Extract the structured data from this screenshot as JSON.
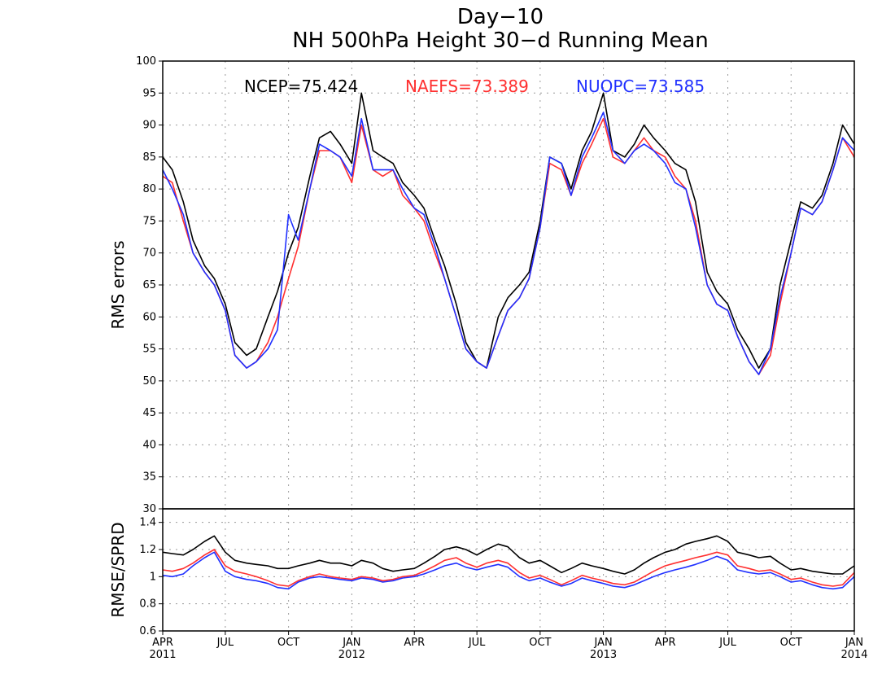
{
  "chart_data": [
    {
      "type": "line",
      "title": "Day−10",
      "subtitle": "NH 500hPa Height 30−d Running Mean",
      "ylabel": "RMS errors",
      "xlabel": "",
      "ylim": [
        30,
        100
      ],
      "yticks": [
        30,
        35,
        40,
        45,
        50,
        55,
        60,
        65,
        70,
        75,
        80,
        85,
        90,
        95,
        100
      ],
      "xlim": [
        "2011-04-01",
        "2014-01-01"
      ],
      "xtick_labels": [
        {
          "date": "2011-04-01",
          "label": "APR",
          "year": "2011"
        },
        {
          "date": "2011-07-01",
          "label": "JUL",
          "year": ""
        },
        {
          "date": "2011-10-01",
          "label": "OCT",
          "year": ""
        },
        {
          "date": "2012-01-01",
          "label": "JAN",
          "year": "2012"
        },
        {
          "date": "2012-04-01",
          "label": "APR",
          "year": ""
        },
        {
          "date": "2012-07-01",
          "label": "JUL",
          "year": ""
        },
        {
          "date": "2012-10-01",
          "label": "OCT",
          "year": ""
        },
        {
          "date": "2013-01-01",
          "label": "JAN",
          "year": "2013"
        },
        {
          "date": "2013-04-01",
          "label": "APR",
          "year": ""
        },
        {
          "date": "2013-07-01",
          "label": "JUL",
          "year": ""
        },
        {
          "date": "2013-10-01",
          "label": "OCT",
          "year": ""
        },
        {
          "date": "2014-01-01",
          "label": "JAN",
          "year": "2014"
        }
      ],
      "grid": true,
      "legend_position": "top",
      "x": [
        "2011-04-01",
        "2011-04-15",
        "2011-05-01",
        "2011-05-15",
        "2011-06-01",
        "2011-06-15",
        "2011-07-01",
        "2011-07-15",
        "2011-08-01",
        "2011-08-15",
        "2011-09-01",
        "2011-09-15",
        "2011-10-01",
        "2011-10-15",
        "2011-11-01",
        "2011-11-15",
        "2011-12-01",
        "2011-12-15",
        "2012-01-01",
        "2012-01-15",
        "2012-02-01",
        "2012-02-15",
        "2012-03-01",
        "2012-03-15",
        "2012-04-01",
        "2012-04-15",
        "2012-05-01",
        "2012-05-15",
        "2012-06-01",
        "2012-06-15",
        "2012-07-01",
        "2012-07-15",
        "2012-08-01",
        "2012-08-15",
        "2012-09-01",
        "2012-09-15",
        "2012-10-01",
        "2012-10-15",
        "2012-11-01",
        "2012-11-15",
        "2012-12-01",
        "2012-12-15",
        "2013-01-01",
        "2013-01-15",
        "2013-02-01",
        "2013-02-15",
        "2013-03-01",
        "2013-03-15",
        "2013-04-01",
        "2013-04-15",
        "2013-05-01",
        "2013-05-15",
        "2013-06-01",
        "2013-06-15",
        "2013-07-01",
        "2013-07-15",
        "2013-08-01",
        "2013-08-15",
        "2013-09-01",
        "2013-09-15",
        "2013-10-01",
        "2013-10-15",
        "2013-11-01",
        "2013-11-15",
        "2013-12-01",
        "2013-12-15",
        "2014-01-01"
      ],
      "series": [
        {
          "name": "NCEP",
          "score": "75.424",
          "color": "#000000",
          "values": [
            85,
            83,
            78,
            72,
            68,
            66,
            62,
            56,
            54,
            55,
            60,
            64,
            70,
            74,
            82,
            88,
            89,
            87,
            84,
            95,
            86,
            85,
            84,
            81,
            79,
            77,
            72,
            68,
            62,
            56,
            53,
            52,
            60,
            63,
            65,
            67,
            75,
            85,
            84,
            80,
            86,
            89,
            95,
            86,
            85,
            87,
            90,
            88,
            86,
            84,
            83,
            78,
            67,
            64,
            62,
            58,
            55,
            52,
            55,
            65,
            72,
            78,
            77,
            79,
            84,
            90,
            87
          ]
        },
        {
          "name": "NAEFS",
          "score": "73.389",
          "color": "#ff3030",
          "values": [
            82,
            81,
            75,
            70,
            67,
            65,
            61,
            54,
            52,
            53,
            56,
            60,
            66,
            71,
            80,
            86,
            86,
            85,
            81,
            90,
            83,
            82,
            83,
            79,
            77,
            75,
            70,
            66,
            60,
            55,
            53,
            52,
            57,
            61,
            63,
            66,
            74,
            84,
            83,
            79,
            84,
            87,
            91,
            85,
            84,
            86,
            88,
            86,
            85,
            82,
            80,
            75,
            65,
            62,
            61,
            57,
            53,
            51,
            54,
            62,
            70,
            77,
            76,
            78,
            83,
            88,
            85
          ]
        },
        {
          "name": "NUOPC",
          "score": "73.585",
          "color": "#2030ff",
          "values": [
            83,
            80,
            76,
            70,
            67,
            65,
            61,
            54,
            52,
            53,
            55,
            58,
            76,
            72,
            80,
            87,
            86,
            85,
            82,
            91,
            83,
            83,
            83,
            80,
            77,
            76,
            71,
            66,
            60,
            55,
            53,
            52,
            57,
            61,
            63,
            66,
            74,
            85,
            84,
            79,
            85,
            88,
            92,
            86,
            84,
            86,
            87,
            86,
            84,
            81,
            80,
            74,
            65,
            62,
            61,
            57,
            53,
            51,
            55,
            63,
            70,
            77,
            76,
            78,
            83,
            88,
            86
          ]
        }
      ]
    },
    {
      "type": "line",
      "title": "",
      "ylabel": "RMSE/SPRD",
      "ylim": [
        0.6,
        1.5
      ],
      "yticks": [
        0.6,
        0.8,
        1,
        1.2,
        1.4
      ],
      "ytick_labels": [
        "0.6",
        "0.8",
        "1",
        "1.2",
        "1.4"
      ],
      "xlim": [
        "2011-04-01",
        "2014-01-01"
      ],
      "grid": true,
      "series": [
        {
          "name": "NCEP",
          "color": "#000000",
          "values": [
            1.18,
            1.17,
            1.16,
            1.2,
            1.26,
            1.3,
            1.18,
            1.12,
            1.1,
            1.09,
            1.08,
            1.06,
            1.06,
            1.08,
            1.1,
            1.12,
            1.1,
            1.1,
            1.08,
            1.12,
            1.1,
            1.06,
            1.04,
            1.05,
            1.06,
            1.1,
            1.15,
            1.2,
            1.22,
            1.2,
            1.16,
            1.2,
            1.24,
            1.22,
            1.14,
            1.1,
            1.12,
            1.08,
            1.03,
            1.06,
            1.1,
            1.08,
            1.06,
            1.04,
            1.02,
            1.05,
            1.1,
            1.14,
            1.18,
            1.2,
            1.24,
            1.26,
            1.28,
            1.3,
            1.26,
            1.18,
            1.16,
            1.14,
            1.15,
            1.1,
            1.05,
            1.06,
            1.04,
            1.03,
            1.02,
            1.02,
            1.08
          ]
        },
        {
          "name": "NAEFS",
          "color": "#ff3030",
          "values": [
            1.05,
            1.04,
            1.06,
            1.1,
            1.16,
            1.2,
            1.08,
            1.04,
            1.02,
            1.0,
            0.97,
            0.94,
            0.93,
            0.97,
            1.0,
            1.02,
            1.0,
            0.99,
            0.98,
            1.0,
            0.99,
            0.97,
            0.98,
            1.0,
            1.01,
            1.04,
            1.08,
            1.12,
            1.14,
            1.1,
            1.07,
            1.1,
            1.12,
            1.1,
            1.03,
            0.99,
            1.01,
            0.98,
            0.94,
            0.97,
            1.01,
            0.99,
            0.97,
            0.95,
            0.94,
            0.96,
            1.0,
            1.04,
            1.08,
            1.1,
            1.12,
            1.14,
            1.16,
            1.18,
            1.16,
            1.08,
            1.06,
            1.04,
            1.05,
            1.02,
            0.98,
            0.99,
            0.96,
            0.94,
            0.93,
            0.94,
            1.03
          ]
        },
        {
          "name": "NUOPC",
          "color": "#2030ff",
          "values": [
            1.01,
            1.0,
            1.02,
            1.08,
            1.14,
            1.18,
            1.04,
            1.0,
            0.98,
            0.97,
            0.95,
            0.92,
            0.91,
            0.96,
            0.99,
            1.0,
            0.99,
            0.98,
            0.97,
            0.99,
            0.98,
            0.96,
            0.97,
            0.99,
            1.0,
            1.02,
            1.05,
            1.08,
            1.1,
            1.07,
            1.05,
            1.07,
            1.09,
            1.07,
            1.0,
            0.97,
            0.99,
            0.96,
            0.93,
            0.95,
            0.99,
            0.97,
            0.95,
            0.93,
            0.92,
            0.94,
            0.97,
            1.0,
            1.03,
            1.05,
            1.07,
            1.09,
            1.12,
            1.15,
            1.12,
            1.05,
            1.03,
            1.02,
            1.03,
            1.0,
            0.96,
            0.97,
            0.94,
            0.92,
            0.91,
            0.92,
            1.0
          ]
        }
      ]
    }
  ]
}
